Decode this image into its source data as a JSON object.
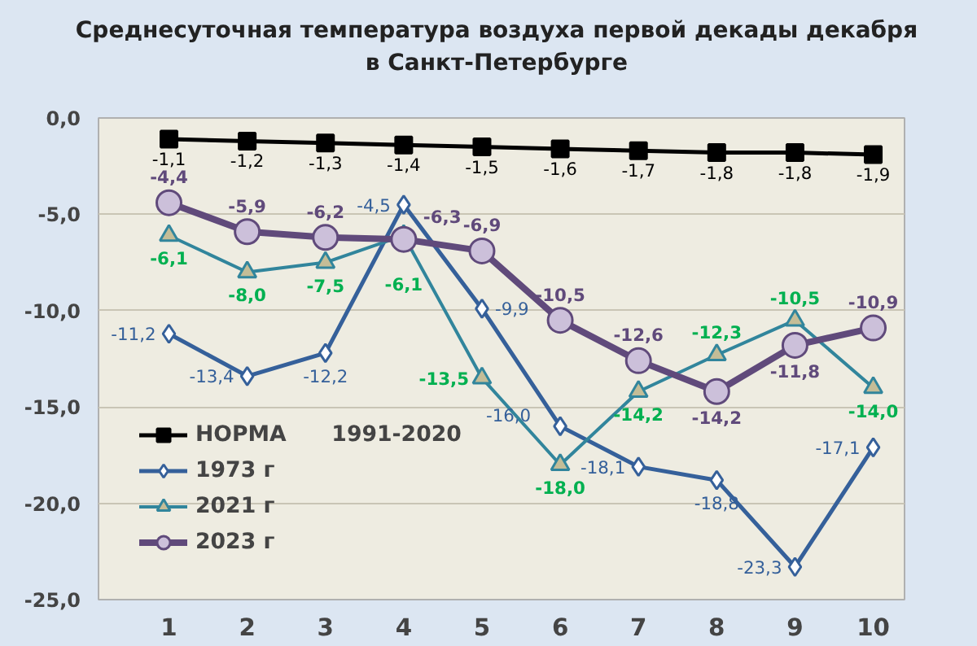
{
  "chart_data": {
    "type": "line",
    "title": "Среднесуточная температура воздуха первой декады декабря\nв Санкт-Петербурге",
    "categories": [
      "1",
      "2",
      "3",
      "4",
      "5",
      "6",
      "7",
      "8",
      "9",
      "10"
    ],
    "ylim": [
      -25,
      0
    ],
    "yticks": [
      {
        "value": 0,
        "label": "0,0"
      },
      {
        "value": -5,
        "label": "-5,0"
      },
      {
        "value": -10,
        "label": "-10,0"
      },
      {
        "value": -15,
        "label": "-15,0"
      },
      {
        "value": -20,
        "label": "-20,0"
      },
      {
        "value": -25,
        "label": "-25,0"
      }
    ],
    "grid": "y",
    "legend": "bottom left",
    "series": [
      {
        "name": "НОРМА      1991-2020",
        "color": "#000000",
        "marker": "square",
        "values": [
          -1.1,
          -1.2,
          -1.3,
          -1.4,
          -1.5,
          -1.6,
          -1.7,
          -1.8,
          -1.8,
          -1.9
        ],
        "value_labels": [
          "-1,1",
          "-1,2",
          "-1,3",
          "-1,4",
          "-1,5",
          "-1,6",
          "-1,7",
          "-1,8",
          "-1,8",
          "-1,9"
        ]
      },
      {
        "name": "1973 г",
        "color": "#35609a",
        "marker": "diamond",
        "values": [
          -11.2,
          -13.4,
          -12.2,
          -4.5,
          -9.9,
          -16.0,
          -18.1,
          -18.8,
          -23.3,
          -17.1
        ],
        "value_labels": [
          "-11,2",
          "-13,4",
          "-12,2",
          "-4,5",
          "-9,9",
          "-16,0",
          "-18,1",
          "-18,8",
          "-23,3",
          "-17,1"
        ]
      },
      {
        "name": "2021 г",
        "color": "#31859c",
        "marker": "triangle",
        "values": [
          -6.1,
          -8.0,
          -7.5,
          -6.1,
          -13.5,
          -18.0,
          -14.2,
          -12.3,
          -10.5,
          -14.0
        ],
        "value_labels": [
          "-6,1",
          "-8,0",
          "-7,5",
          "-6,1",
          "-13,5",
          "-18,0",
          "-14,2",
          "-12,3",
          "-10,5",
          "-14,0"
        ]
      },
      {
        "name": "2023 г",
        "color": "#604a7b",
        "marker": "circle",
        "values": [
          -4.4,
          -5.9,
          -6.2,
          -6.3,
          -6.9,
          -10.5,
          -12.6,
          -14.2,
          -11.8,
          -10.9
        ],
        "value_labels": [
          "-4,4",
          "-5,9",
          "-6,2",
          "-6,3",
          "-6,9",
          "-10,5",
          "-12,6",
          "-14,2",
          "-11,8",
          "-10,9"
        ]
      }
    ]
  }
}
